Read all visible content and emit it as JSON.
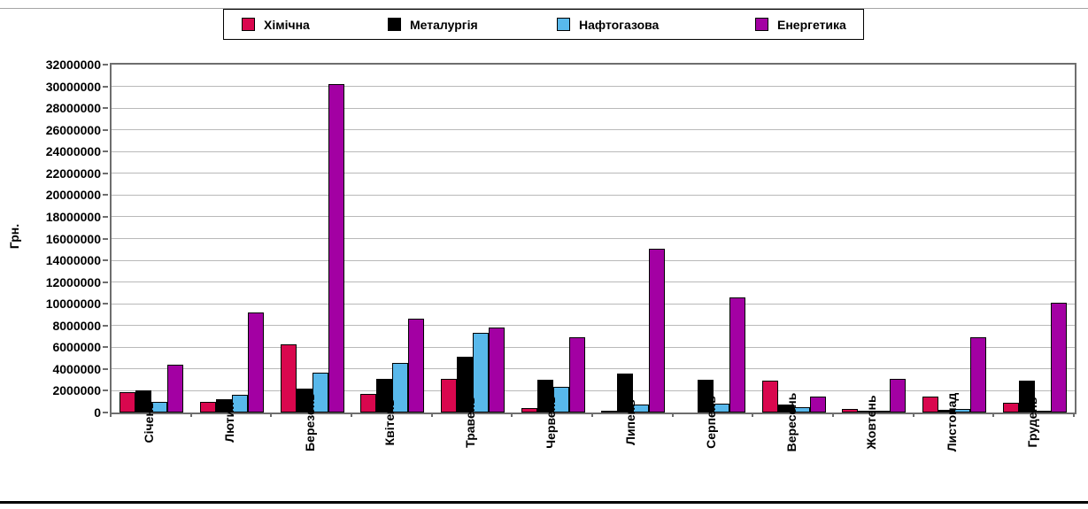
{
  "legend": {
    "items": [
      {
        "label": "Хімічна",
        "color": "#D9074E"
      },
      {
        "label": "Металургія",
        "color": "#000000"
      },
      {
        "label": "Нафтогазова",
        "color": "#58B8EB"
      },
      {
        "label": "Енергетика",
        "color": "#A300A3"
      }
    ]
  },
  "chart_data": {
    "type": "bar",
    "title": "",
    "xlabel": "",
    "ylabel": "Грн.",
    "ylim": [
      0,
      32000000
    ],
    "ytick_step": 2000000,
    "grid": "horizontal",
    "legend_position": "top",
    "categories": [
      "Січень",
      "Лютий",
      "Березень",
      "Квітень",
      "Травень",
      "Червень",
      "Липень",
      "Серпень",
      "Вересень",
      "Жовтень",
      "Листопад",
      "Грудень"
    ],
    "series": [
      {
        "name": "Хімічна",
        "color": "#D9074E",
        "values": [
          1900000,
          1000000,
          6300000,
          1700000,
          3100000,
          400000,
          200000,
          0,
          2900000,
          300000,
          1450000,
          900000
        ]
      },
      {
        "name": "Металургія",
        "color": "#000000",
        "values": [
          2050000,
          1200000,
          2200000,
          3100000,
          5100000,
          3000000,
          3600000,
          3000000,
          700000,
          200000,
          250000,
          2900000
        ]
      },
      {
        "name": "Нафтогазова",
        "color": "#58B8EB",
        "values": [
          1000000,
          1600000,
          3700000,
          4600000,
          7300000,
          2400000,
          700000,
          800000,
          500000,
          150000,
          300000,
          200000
        ]
      },
      {
        "name": "Енергетика",
        "color": "#A300A3",
        "values": [
          4400000,
          9200000,
          30200000,
          8600000,
          7800000,
          6900000,
          15100000,
          10600000,
          1500000,
          3100000,
          6900000,
          10100000
        ]
      }
    ]
  }
}
